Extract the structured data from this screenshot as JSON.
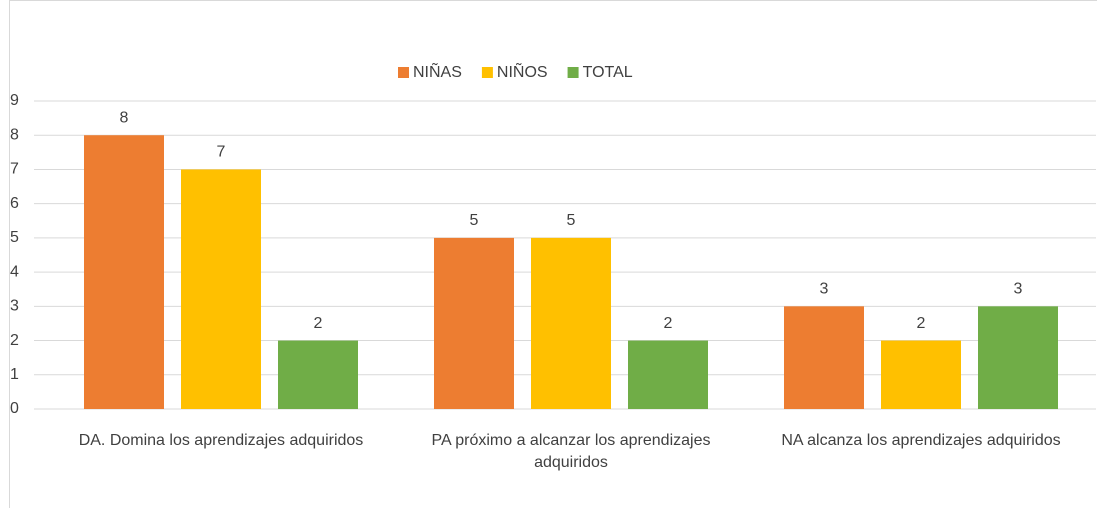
{
  "chart_data": {
    "type": "bar",
    "categories": [
      "DA.  Domina los aprendizajes adquiridos",
      "PA próximo a alcanzar los aprendizajes adquiridos",
      "NA alcanza los aprendizajes adquiridos"
    ],
    "series": [
      {
        "name": "NIÑAS",
        "color": "#ed7d31",
        "values": [
          8,
          5,
          3
        ]
      },
      {
        "name": "NIÑOS",
        "color": "#ffc000",
        "values": [
          7,
          5,
          2
        ]
      },
      {
        "name": "TOTAL",
        "color": "#70ad47",
        "values": [
          2,
          2,
          3
        ]
      }
    ],
    "ylim": [
      0,
      9
    ],
    "yticks": [
      0,
      1,
      2,
      3,
      4,
      5,
      6,
      7,
      8,
      9
    ],
    "grid": true,
    "legend": "top"
  }
}
